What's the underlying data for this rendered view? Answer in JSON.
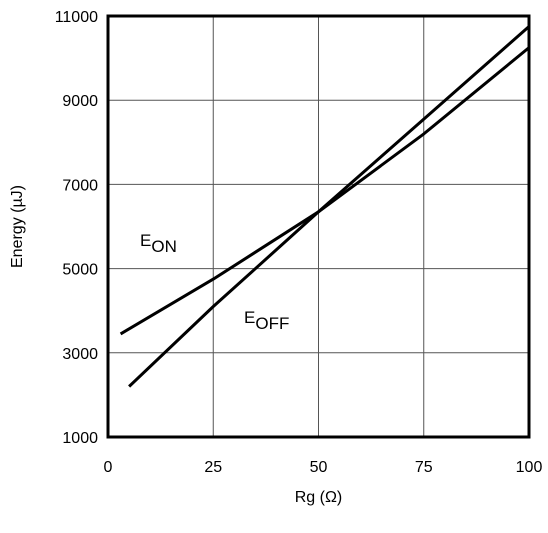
{
  "chart_data": {
    "type": "line",
    "xlabel": "Rg (Ω)",
    "ylabel": "Energy (µJ)",
    "xlim": [
      0,
      100
    ],
    "ylim": [
      1000,
      11000
    ],
    "x_ticks": [
      "0",
      "25",
      "50",
      "75",
      "100"
    ],
    "y_ticks": [
      "1000",
      "3000",
      "5000",
      "7000",
      "9000",
      "11000"
    ],
    "grid": true,
    "series": [
      {
        "name": "EON",
        "label_main": "E",
        "label_sub": "ON",
        "x": [
          3,
          25,
          50,
          75,
          100
        ],
        "y": [
          3450,
          4750,
          6350,
          8200,
          10250
        ]
      },
      {
        "name": "EOFF",
        "label_main": "E",
        "label_sub": "OFF",
        "x": [
          5,
          25,
          50,
          75,
          100
        ],
        "y": [
          2200,
          4100,
          6350,
          8550,
          10750
        ]
      }
    ]
  }
}
